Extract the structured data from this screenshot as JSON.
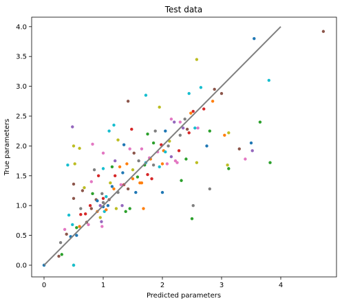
{
  "chart_data": {
    "type": "scatter",
    "title": "Test data",
    "xlabel": "Predicted parameters",
    "ylabel": "True parameters",
    "xlim": [
      -0.2,
      4.95
    ],
    "ylim": [
      -0.2,
      4.2
    ],
    "xticks": [
      0,
      1,
      2,
      3,
      4
    ],
    "yticks": [
      0.0,
      0.5,
      1.0,
      1.5,
      2.0,
      2.5,
      3.0,
      3.5,
      4.0
    ],
    "grid": false,
    "legend": "none",
    "reference_line": {
      "x": [
        0,
        4
      ],
      "y": [
        0,
        4
      ],
      "color": "#7f7f7f"
    },
    "palette": [
      "#1f77b4",
      "#ff7f0e",
      "#2ca02c",
      "#d62728",
      "#9467bd",
      "#8c564b",
      "#e377c2",
      "#7f7f7f",
      "#bcbd22",
      "#17becf"
    ],
    "points": [
      [
        0.0,
        0.0,
        9
      ],
      [
        0.0,
        0.0,
        0
      ],
      [
        0.5,
        0.0,
        2
      ],
      [
        0.5,
        0.0,
        9
      ],
      [
        0.25,
        0.15,
        5
      ],
      [
        0.3,
        0.18,
        2
      ],
      [
        0.28,
        0.38,
        7
      ],
      [
        0.38,
        0.52,
        5
      ],
      [
        0.35,
        0.6,
        6
      ],
      [
        0.45,
        0.48,
        0
      ],
      [
        0.42,
        0.84,
        9
      ],
      [
        0.48,
        0.68,
        9
      ],
      [
        0.5,
        1.12,
        5
      ],
      [
        0.5,
        1.36,
        5
      ],
      [
        0.52,
        1.7,
        8
      ],
      [
        0.5,
        2.0,
        8
      ],
      [
        0.48,
        2.32,
        4
      ],
      [
        0.4,
        1.68,
        9
      ],
      [
        0.55,
        0.63,
        2
      ],
      [
        0.55,
        0.5,
        0
      ],
      [
        0.6,
        0.65,
        1
      ],
      [
        0.62,
        0.95,
        7
      ],
      [
        0.62,
        0.85,
        3
      ],
      [
        0.65,
        1.25,
        5
      ],
      [
        0.68,
        1.3,
        8
      ],
      [
        0.6,
        1.96,
        8
      ],
      [
        0.7,
        0.86,
        3
      ],
      [
        0.72,
        0.72,
        5
      ],
      [
        0.75,
        0.68,
        6
      ],
      [
        0.78,
        1.0,
        3
      ],
      [
        0.8,
        0.95,
        5
      ],
      [
        0.82,
        1.2,
        2
      ],
      [
        0.8,
        1.4,
        6
      ],
      [
        0.85,
        1.6,
        7
      ],
      [
        0.82,
        2.03,
        6
      ],
      [
        0.88,
        1.1,
        5
      ],
      [
        0.9,
        0.9,
        1
      ],
      [
        0.9,
        1.08,
        0
      ],
      [
        0.92,
        1.5,
        3
      ],
      [
        0.95,
        1.0,
        4
      ],
      [
        0.95,
        0.8,
        8
      ],
      [
        0.98,
        0.65,
        6
      ],
      [
        0.97,
        0.73,
        4
      ],
      [
        0.98,
        1.2,
        7
      ],
      [
        1.0,
        1.05,
        7
      ],
      [
        1.0,
        1.12,
        3
      ],
      [
        1.0,
        0.98,
        0
      ],
      [
        1.02,
        0.9,
        9
      ],
      [
        1.0,
        1.62,
        9
      ],
      [
        1.0,
        1.88,
        6
      ],
      [
        1.05,
        1.15,
        9
      ],
      [
        1.05,
        0.93,
        1
      ],
      [
        1.08,
        1.0,
        0
      ],
      [
        1.1,
        1.1,
        5
      ],
      [
        1.12,
        1.38,
        8
      ],
      [
        1.15,
        1.32,
        0
      ],
      [
        1.15,
        1.65,
        2
      ],
      [
        1.18,
        1.28,
        1
      ],
      [
        1.2,
        1.5,
        3
      ],
      [
        1.2,
        1.75,
        4
      ],
      [
        1.22,
        0.95,
        8
      ],
      [
        1.25,
        1.22,
        7
      ],
      [
        1.25,
        2.1,
        8
      ],
      [
        1.18,
        2.35,
        9
      ],
      [
        1.1,
        2.25,
        9
      ],
      [
        1.28,
        1.65,
        1
      ],
      [
        1.3,
        1.35,
        6
      ],
      [
        1.32,
        1.0,
        4
      ],
      [
        1.33,
        1.55,
        0
      ],
      [
        1.35,
        1.35,
        3
      ],
      [
        1.35,
        2.02,
        0
      ],
      [
        1.38,
        0.9,
        2
      ],
      [
        1.4,
        1.7,
        1
      ],
      [
        1.42,
        1.28,
        5
      ],
      [
        1.42,
        2.75,
        5
      ],
      [
        1.45,
        0.95,
        2
      ],
      [
        1.45,
        1.95,
        6
      ],
      [
        1.48,
        2.28,
        3
      ],
      [
        1.5,
        1.6,
        8
      ],
      [
        1.5,
        1.45,
        1
      ],
      [
        1.52,
        1.88,
        5
      ],
      [
        1.55,
        1.22,
        0
      ],
      [
        1.58,
        1.48,
        2
      ],
      [
        1.6,
        1.75,
        7
      ],
      [
        1.62,
        1.38,
        1
      ],
      [
        1.65,
        1.38,
        1
      ],
      [
        1.65,
        1.95,
        6
      ],
      [
        1.68,
        0.95,
        1
      ],
      [
        1.7,
        1.68,
        2
      ],
      [
        1.72,
        1.72,
        9
      ],
      [
        1.72,
        2.85,
        9
      ],
      [
        1.75,
        1.52,
        3
      ],
      [
        1.75,
        2.2,
        2
      ],
      [
        1.78,
        1.8,
        6
      ],
      [
        1.8,
        1.78,
        1
      ],
      [
        1.82,
        1.45,
        3
      ],
      [
        1.85,
        1.68,
        7
      ],
      [
        1.85,
        2.05,
        2
      ],
      [
        1.88,
        2.25,
        7
      ],
      [
        1.92,
        1.9,
        6
      ],
      [
        1.95,
        1.65,
        9
      ],
      [
        1.95,
        2.65,
        8
      ],
      [
        1.98,
        2.02,
        3
      ],
      [
        2.0,
        1.7,
        1
      ],
      [
        2.02,
        1.92,
        1
      ],
      [
        2.05,
        2.25,
        0
      ],
      [
        2.05,
        1.9,
        9
      ],
      [
        2.08,
        1.7,
        6
      ],
      [
        2.1,
        2.0,
        7
      ],
      [
        2.12,
        2.08,
        8
      ],
      [
        2.15,
        2.45,
        6
      ],
      [
        2.15,
        1.82,
        4
      ],
      [
        2.2,
        2.4,
        4
      ],
      [
        2.22,
        1.75,
        6
      ],
      [
        2.25,
        1.72,
        6
      ],
      [
        2.28,
        1.92,
        3
      ],
      [
        2.3,
        2.4,
        6
      ],
      [
        2.3,
        2.18,
        7
      ],
      [
        2.32,
        1.42,
        2
      ],
      [
        2.35,
        2.3,
        4
      ],
      [
        2.38,
        2.45,
        7
      ],
      [
        2.4,
        1.78,
        2
      ],
      [
        2.42,
        2.28,
        5
      ],
      [
        2.45,
        2.22,
        3
      ],
      [
        2.45,
        2.88,
        9
      ],
      [
        2.48,
        2.55,
        1
      ],
      [
        2.5,
        0.78,
        2
      ],
      [
        2.52,
        1.0,
        7
      ],
      [
        2.52,
        2.58,
        3
      ],
      [
        2.55,
        2.3,
        9
      ],
      [
        2.58,
        1.72,
        8
      ],
      [
        2.58,
        3.45,
        8
      ],
      [
        2.6,
        2.3,
        6
      ],
      [
        2.65,
        2.98,
        9
      ],
      [
        2.7,
        2.62,
        3
      ],
      [
        2.75,
        2.0,
        0
      ],
      [
        2.8,
        2.25,
        2
      ],
      [
        2.8,
        1.28,
        7
      ],
      [
        2.85,
        2.75,
        1
      ],
      [
        2.88,
        2.95,
        5
      ],
      [
        3.0,
        2.88,
        5
      ],
      [
        3.05,
        2.18,
        1
      ],
      [
        3.1,
        1.68,
        8
      ],
      [
        3.12,
        1.62,
        2
      ],
      [
        3.12,
        2.22,
        8
      ],
      [
        3.3,
        1.95,
        5
      ],
      [
        3.4,
        1.78,
        6
      ],
      [
        3.52,
        1.92,
        4
      ],
      [
        3.5,
        2.05,
        0
      ],
      [
        3.55,
        3.8,
        0
      ],
      [
        3.65,
        2.4,
        2
      ],
      [
        3.8,
        3.1,
        9
      ],
      [
        3.82,
        1.72,
        2
      ],
      [
        4.72,
        3.92,
        5
      ],
      [
        2.0,
        1.22,
        0
      ]
    ]
  }
}
